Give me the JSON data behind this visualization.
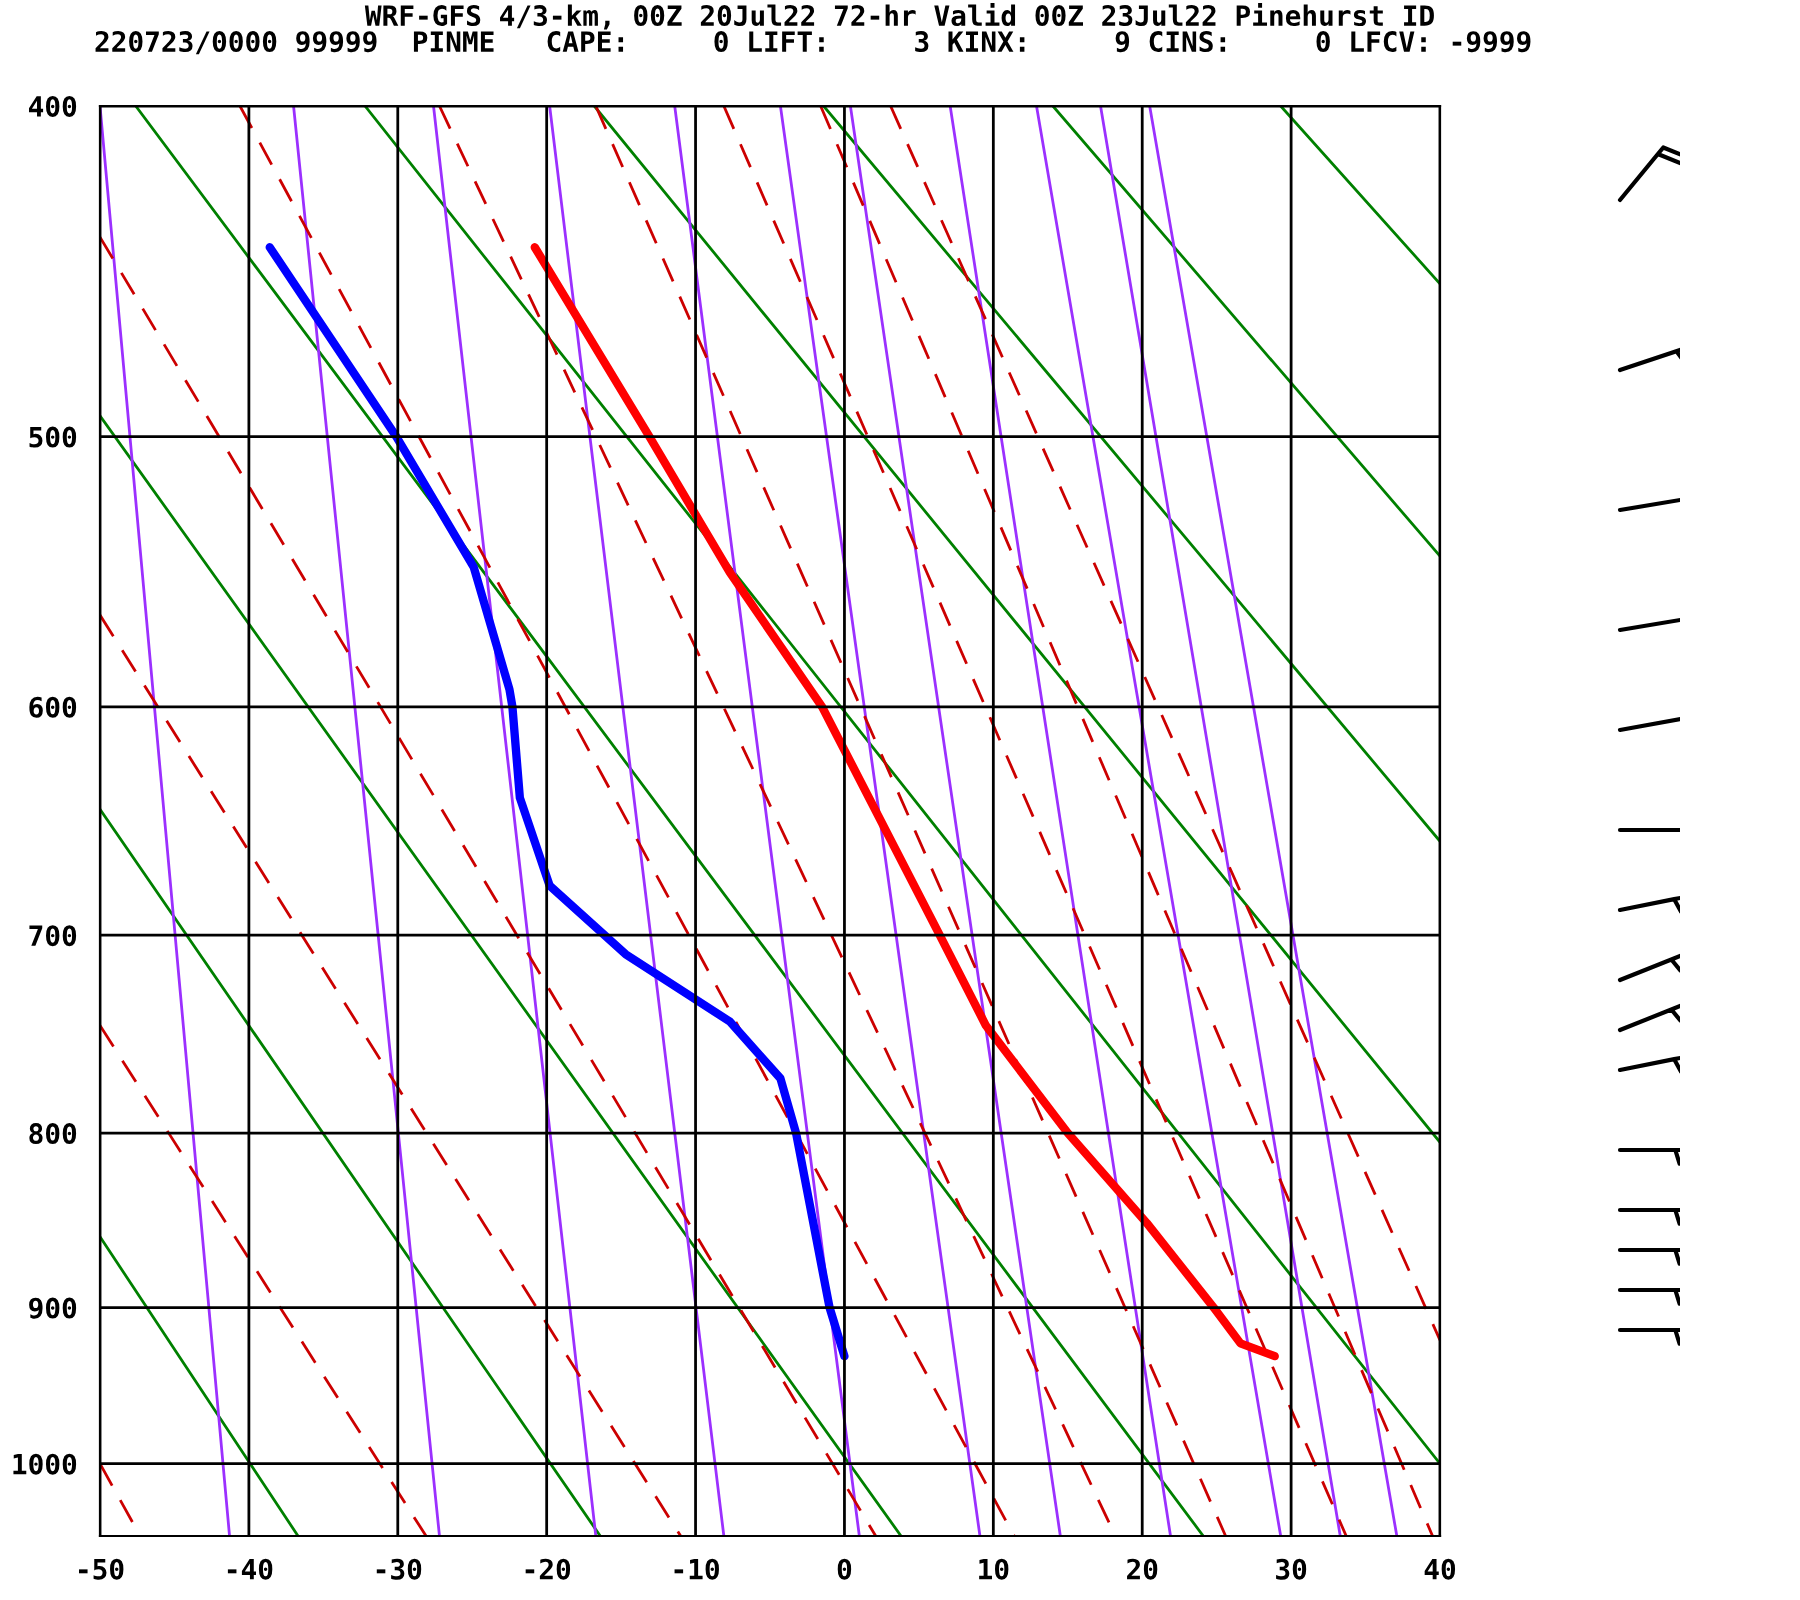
{
  "chart_data": {
    "type": "line",
    "title": "WRF-GFS 4/3-km, 00Z 20Jul22 72-hr Valid 00Z 23Jul22 Pinehurst ID",
    "subtitle": "220723/0000 99999  PINME   CAPE:     0 LIFT:     3 KINX:     9 CINS:     0 LFCV: -9999",
    "xlim": [
      -50,
      40
    ],
    "xticks": [
      -50,
      -40,
      -30,
      -20,
      -10,
      0,
      10,
      20,
      30,
      40
    ],
    "ylim": [
      1050,
      400
    ],
    "yticks": [
      400,
      500,
      600,
      700,
      800,
      900,
      1000
    ],
    "grid": true,
    "log": true,
    "series": [
      {
        "color": "#008000",
        "line_style": "solid",
        "x": [
          -50,
          -36.7
        ],
        "values": [
          858,
          1050
        ]
      },
      {
        "color": "#008000",
        "line_style": "solid",
        "x": [
          -50,
          -16.4
        ],
        "values": [
          643,
          1050
        ]
      },
      {
        "color": "#008000",
        "line_style": "solid",
        "x": [
          -50,
          3.8
        ],
        "values": [
          493,
          1050
        ]
      },
      {
        "color": "#008000",
        "line_style": "solid",
        "x": [
          -47.6,
          24.1
        ],
        "values": [
          400,
          1050
        ]
      },
      {
        "color": "#008000",
        "line_style": "solid",
        "x": [
          -32.2,
          40
        ],
        "values": [
          400,
          1000
        ]
      },
      {
        "color": "#008000",
        "line_style": "solid",
        "x": [
          -16.8,
          40
        ],
        "values": [
          400,
          805
        ]
      },
      {
        "color": "#008000",
        "line_style": "solid",
        "x": [
          -1.4,
          40
        ],
        "values": [
          400,
          657
        ]
      },
      {
        "color": "#008000",
        "line_style": "solid",
        "x": [
          14.0,
          40
        ],
        "values": [
          400,
          542
        ]
      },
      {
        "color": "#008000",
        "line_style": "solid",
        "x": [
          29.3,
          40
        ],
        "values": [
          400,
          451
        ]
      },
      {
        "color": "#9b30ff",
        "line_style": "solid",
        "x": [
          -50.0,
          -41.3
        ],
        "values": [
          400,
          1050
        ]
      },
      {
        "color": "#9b30ff",
        "line_style": "solid",
        "x": [
          -37.0,
          -27.2
        ],
        "values": [
          400,
          1050
        ]
      },
      {
        "color": "#9b30ff",
        "line_style": "solid",
        "x": [
          -27.6,
          -16.7
        ],
        "values": [
          400,
          1050
        ]
      },
      {
        "color": "#9b30ff",
        "line_style": "solid",
        "x": [
          -19.8,
          -8.1
        ],
        "values": [
          400,
          1050
        ]
      },
      {
        "color": "#9b30ff",
        "line_style": "solid",
        "x": [
          -11.4,
          1.0
        ],
        "values": [
          400,
          1050
        ]
      },
      {
        "color": "#9b30ff",
        "line_style": "solid",
        "x": [
          -4.3,
          9.1
        ],
        "values": [
          400,
          1050
        ]
      },
      {
        "color": "#9b30ff",
        "line_style": "solid",
        "x": [
          0.4,
          14.5
        ],
        "values": [
          400,
          1050
        ]
      },
      {
        "color": "#9b30ff",
        "line_style": "solid",
        "x": [
          7.1,
          21.9
        ],
        "values": [
          400,
          1050
        ]
      },
      {
        "color": "#9b30ff",
        "line_style": "solid",
        "x": [
          12.9,
          29.3
        ],
        "values": [
          400,
          1050
        ]
      },
      {
        "color": "#9b30ff",
        "line_style": "solid",
        "x": [
          17.2,
          33.3
        ],
        "values": [
          400,
          1050
        ]
      },
      {
        "color": "#9b30ff",
        "line_style": "solid",
        "x": [
          20.5,
          37.1
        ],
        "values": [
          400,
          1050
        ]
      },
      {
        "color": "#cc0000",
        "line_style": "dashed",
        "x": [
          -50,
          -47.3
        ],
        "values": [
          1000,
          1050
        ]
      },
      {
        "color": "#cc0000",
        "line_style": "dashed",
        "x": [
          -50,
          -28.1
        ],
        "values": [
          744,
          1050
        ]
      },
      {
        "color": "#cc0000",
        "line_style": "dashed",
        "x": [
          -50,
          -11.0
        ],
        "values": [
          564,
          1050
        ]
      },
      {
        "color": "#cc0000",
        "line_style": "dashed",
        "x": [
          -50,
          2.1
        ],
        "values": [
          437,
          1050
        ]
      },
      {
        "color": "#cc0000",
        "line_style": "dashed",
        "x": [
          -40.6,
          11.4
        ],
        "values": [
          400,
          1050
        ]
      },
      {
        "color": "#cc0000",
        "line_style": "dashed",
        "x": [
          -27.2,
          18.2
        ],
        "values": [
          400,
          1050
        ]
      },
      {
        "color": "#cc0000",
        "line_style": "dashed",
        "x": [
          -16.7,
          25.6
        ],
        "values": [
          400,
          1050
        ]
      },
      {
        "color": "#cc0000",
        "line_style": "dashed",
        "x": [
          -8.1,
          33.7
        ],
        "values": [
          400,
          1050
        ]
      },
      {
        "color": "#cc0000",
        "line_style": "dashed",
        "x": [
          -1.6,
          39.5
        ],
        "values": [
          400,
          1050
        ]
      },
      {
        "color": "#cc0000",
        "line_style": "dashed",
        "x": [
          3.1,
          40
        ],
        "values": [
          400,
          920
        ]
      },
      {
        "color": "#ff0000",
        "line_style": "solid",
        "x": [
          -20.8,
          -13.1,
          -7.7,
          -1.5,
          6.4,
          9.5,
          15.0,
          20.3,
          24.8,
          26.6,
          28.9
        ],
        "values": [
          440,
          500,
          548,
          600,
          700,
          744,
          800,
          850,
          900,
          922,
          930
        ]
      },
      {
        "color": "#0000ff",
        "line_style": "solid",
        "x": [
          -38.6,
          -30.1,
          -24.9,
          -22.5,
          -22.3,
          -21.8,
          -19.8,
          -14.7,
          -7.7,
          -4.3,
          -3.25,
          -1.0,
          0.0
        ],
        "values": [
          440,
          500,
          546,
          593,
          600,
          638,
          677,
          709,
          742,
          771,
          800,
          900,
          930
        ]
      }
    ]
  }
}
